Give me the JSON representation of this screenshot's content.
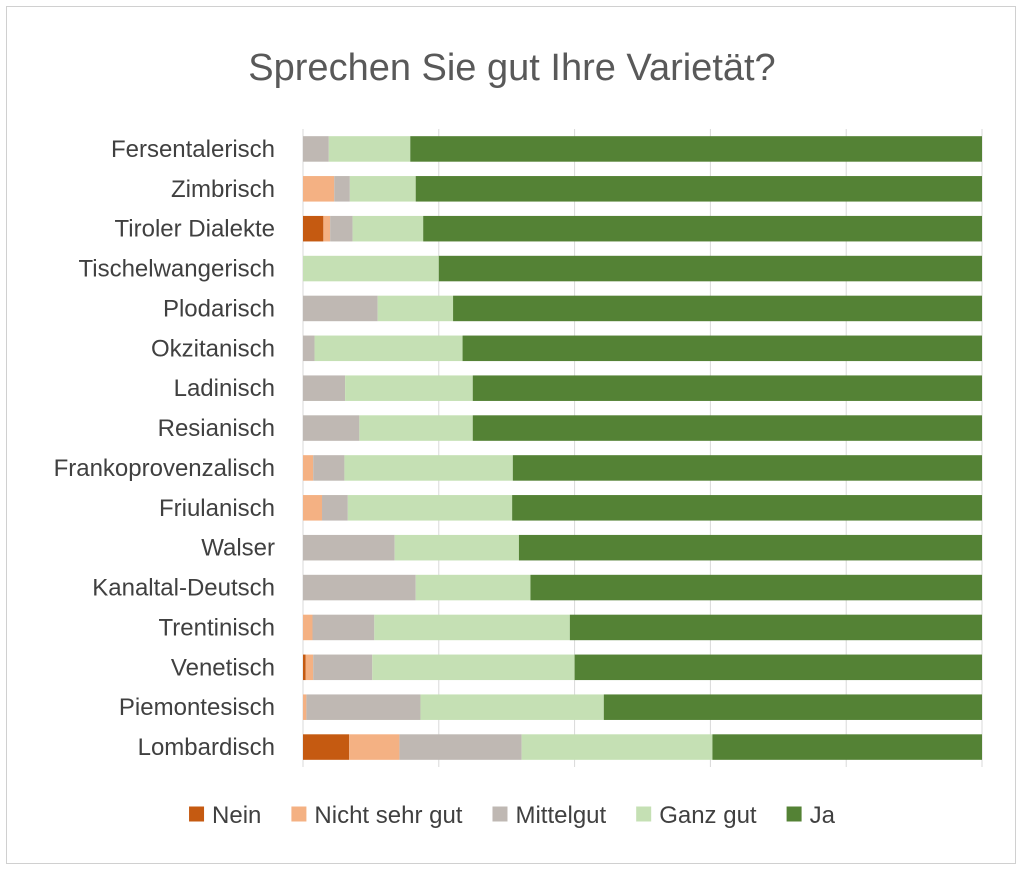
{
  "chart_data": {
    "type": "bar",
    "orientation": "horizontal",
    "stacked": "percent",
    "title": "Sprechen Sie gut Ihre Varietät?",
    "categories": [
      "Fersentalerisch",
      "Zimbrisch",
      "Tiroler Dialekte",
      "Tischelwangerisch",
      "Plodarisch",
      "Okzitanisch",
      "Ladinisch",
      "Resianisch",
      "Frankoprovenzalisch",
      "Friulanisch",
      "Walser",
      "Kanaltal-Deutsch",
      "Trentinisch",
      "Venetisch",
      "Piemontesisch",
      "Lombardisch"
    ],
    "series": [
      {
        "name": "Nein",
        "color": "#c55a11",
        "values": [
          0,
          0,
          3,
          0,
          0,
          0,
          0,
          0,
          0,
          0,
          0,
          0,
          0,
          0.4,
          0,
          6.8
        ]
      },
      {
        "name": "Nicht sehr gut",
        "color": "#f4b183",
        "values": [
          0,
          4.6,
          1,
          0,
          0,
          0,
          0,
          0,
          1.5,
          2.8,
          0,
          0,
          1.4,
          1.1,
          0.5,
          7.4
        ]
      },
      {
        "name": "Mittelgut",
        "color": "#bfb8b3",
        "values": [
          3.8,
          2.3,
          3.3,
          0,
          11,
          1.7,
          6.2,
          8.3,
          4.6,
          3.8,
          13.5,
          16.6,
          9.1,
          8.7,
          16.8,
          18
        ]
      },
      {
        "name": "Ganz gut",
        "color": "#c5e0b4",
        "values": [
          12,
          9.7,
          10.4,
          20,
          11.1,
          21.8,
          18.8,
          16.7,
          24.8,
          24.2,
          18.3,
          16.9,
          28.8,
          29.8,
          27,
          28.1
        ]
      },
      {
        "name": "Ja",
        "color": "#548235",
        "values": [
          84.2,
          83.4,
          82.3,
          80,
          77.9,
          76.5,
          75,
          75,
          69.1,
          69.2,
          68.2,
          66.5,
          60.7,
          60,
          55.7,
          39.7
        ]
      }
    ],
    "xlim": [
      0,
      100
    ],
    "xticks": [
      0,
      20,
      40,
      60,
      80,
      100
    ],
    "grid": true,
    "legend": "bottom"
  }
}
